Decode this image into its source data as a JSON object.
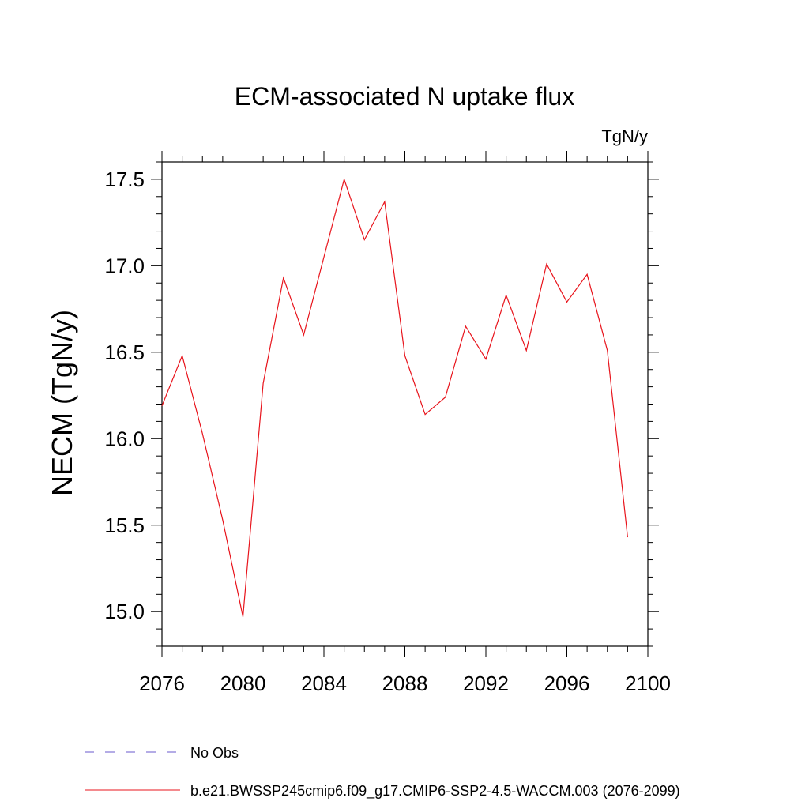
{
  "chart_data": {
    "type": "line",
    "title": "ECM-associated N uptake flux",
    "units": "TgN/y",
    "xlabel": "",
    "ylabel": "NECM  (TgN/y)",
    "xlim": [
      2076,
      2100
    ],
    "ylim": [
      14.8,
      17.6
    ],
    "xticks": [
      2076,
      2080,
      2084,
      2088,
      2092,
      2096,
      2100
    ],
    "xtick_labels": [
      "2076",
      "2080",
      "2084",
      "2088",
      "2092",
      "2096",
      "2100"
    ],
    "yticks": [
      15.0,
      15.5,
      16.0,
      16.5,
      17.0,
      17.5
    ],
    "ytick_labels": [
      "15.0",
      "15.5",
      "16.0",
      "16.5",
      "17.0",
      "17.5"
    ],
    "grid": false,
    "legend_position": "bottom",
    "series": [
      {
        "name": "b.e21.BWSSP245cmip6.f09_g17.CMIP6-SSP2-4.5-WACCM.003 (2076-2099)",
        "color": "#e8141c",
        "style": "solid",
        "x": [
          2076,
          2077,
          2078,
          2079,
          2080,
          2081,
          2082,
          2083,
          2084,
          2085,
          2086,
          2087,
          2088,
          2089,
          2090,
          2091,
          2092,
          2093,
          2094,
          2095,
          2096,
          2097,
          2098,
          2099
        ],
        "values": [
          16.19,
          16.48,
          16.03,
          15.53,
          14.97,
          16.32,
          16.93,
          16.6,
          17.05,
          17.5,
          17.15,
          17.37,
          16.48,
          16.14,
          16.24,
          16.65,
          16.46,
          16.83,
          16.51,
          17.01,
          16.79,
          16.95,
          16.51,
          15.43
        ]
      }
    ],
    "legend": [
      {
        "label": "No Obs",
        "color": "#6a5acd",
        "style": "dashed"
      },
      {
        "label": "b.e21.BWSSP245cmip6.f09_g17.CMIP6-SSP2-4.5-WACCM.003 (2076-2099)",
        "color": "#e8141c",
        "style": "solid"
      }
    ]
  }
}
